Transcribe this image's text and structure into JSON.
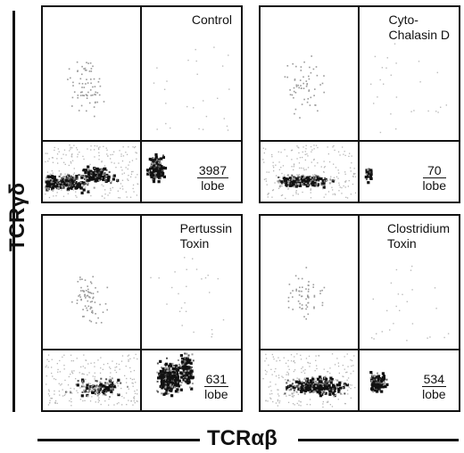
{
  "chart_data": {
    "type": "scatter",
    "xlabel": "TCRαβ",
    "ylabel": "TCRγδ",
    "panels": [
      {
        "title": "Control",
        "count": "3987",
        "unit": "lobe"
      },
      {
        "title": "Cyto-\nChalasin D",
        "count": "70",
        "unit": "lobe"
      },
      {
        "title": "Pertussin\nToxin",
        "count": "631",
        "unit": "lobe"
      },
      {
        "title": "Clostridium\nToxin",
        "count": "534",
        "unit": "lobe"
      }
    ]
  }
}
